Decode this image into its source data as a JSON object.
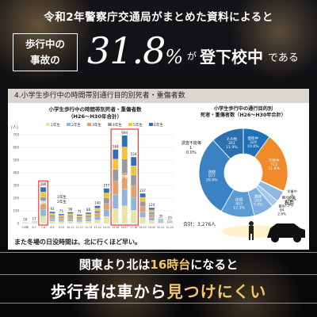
{
  "header": {
    "headline": "令和2年警察庁交通局がまとめた資料によると",
    "box_line1": "歩行中の",
    "box_line2": "事故の",
    "stat_number": "31.8",
    "stat_unit": "%",
    "stat_ga": "が",
    "stat_tail": "登下校中",
    "stat_tail2": "である"
  },
  "section_title": "4.小学生歩行中の時間帯別通行目的別死者・重傷者数",
  "colors": {
    "accent": "#f3c66a",
    "panel_bg": "#ffffff",
    "highlight_box": "#e53935"
  },
  "chart_data": [
    {
      "type": "bar",
      "title": "小学生歩行中の時間帯別死者・重傷者数",
      "subtitle": "（H26〜H30年合計）",
      "ylabel": "(人)",
      "y_ticks": [
        "700",
        "600",
        "500",
        "400",
        "300",
        "200",
        "100",
        "0"
      ],
      "ylim": [
        0,
        700
      ],
      "legend": [
        "1年生",
        "2年生",
        "3年生",
        "4年生",
        "5年生",
        "6年生"
      ],
      "series_colors": [
        "#e9e3a8",
        "#8fb6d8",
        "#e3a06a",
        "#9a9a9a",
        "#f2c43a",
        "#2f6fb3"
      ],
      "categories": [
        "0-6時",
        "6-7",
        "7-8",
        "8-9",
        "9-10",
        "10-11",
        "11-12",
        "12-13",
        "13-14",
        "14-15",
        "15-16",
        "16-17",
        "17-18",
        "18-19",
        "19-20",
        "20-21",
        "22-24"
      ],
      "totals": [
        10,
        17,
        286,
        93,
        75,
        90,
        71,
        86,
        140,
        277,
        584,
        694,
        524,
        237,
        124,
        35,
        23
      ],
      "highlights": [
        {
          "label": "登校",
          "categories": [
            "7-8"
          ]
        },
        {
          "label": "下校",
          "categories": [
            "15-16",
            "16-17",
            "17-18"
          ]
        }
      ],
      "annotation_label_1": "1年生",
      "annotation_label_2": "2年生"
    },
    {
      "type": "pie",
      "title": "小学生歩行中の通行目的別",
      "subtitle": "死者・重傷者数（H26〜H30年合計）",
      "slices": [
        {
          "label": "登校中",
          "count": "329",
          "pct": "10.0%",
          "value": 10.0,
          "color": "#1e73b8"
        },
        {
          "label": "下校中",
          "count": "713",
          "pct": "21.8%",
          "value": 21.8,
          "color": "#f08a2a"
        },
        {
          "label": "学業中",
          "count": "9",
          "pct": "0.3%",
          "value": 0.3,
          "color": "#d9d9d9"
        },
        {
          "label": "観光娯楽",
          "count": "127",
          "pct": "3.9%",
          "value": 3.9,
          "color": "#8cb8e2"
        },
        {
          "label": "散歩",
          "count": "84",
          "pct": "2.6%",
          "value": 2.6,
          "color": "#a9c9e9"
        },
        {
          "label": "買物",
          "count": "243",
          "pct": "7.4%",
          "value": 7.4,
          "color": "#7fb0de"
        },
        {
          "label": "訪問",
          "count": "403",
          "pct": "12.3%",
          "value": 12.3,
          "color": "#5a9bd4"
        },
        {
          "label": "遊戯",
          "count": "977",
          "pct": "29.8%",
          "value": 29.8,
          "color": "#3a82c4"
        },
        {
          "label": "その他",
          "count": "391",
          "pct": "11.9%",
          "value": 11.9,
          "color": "#2b6faf"
        }
      ],
      "other_label": "調査不能等",
      "other_count": "1",
      "other_pct": "0.0%",
      "group_label": "私用",
      "total_label": "合計：3,276人"
    }
  ],
  "caption": "また冬場の日没時間は、北に行くほど早い。",
  "footer": {
    "line1_a": "関東より北は",
    "line1_b": "16時台",
    "line1_c": "になると",
    "line2_a": "歩行者は車から",
    "line2_b": "見つけにくい"
  }
}
